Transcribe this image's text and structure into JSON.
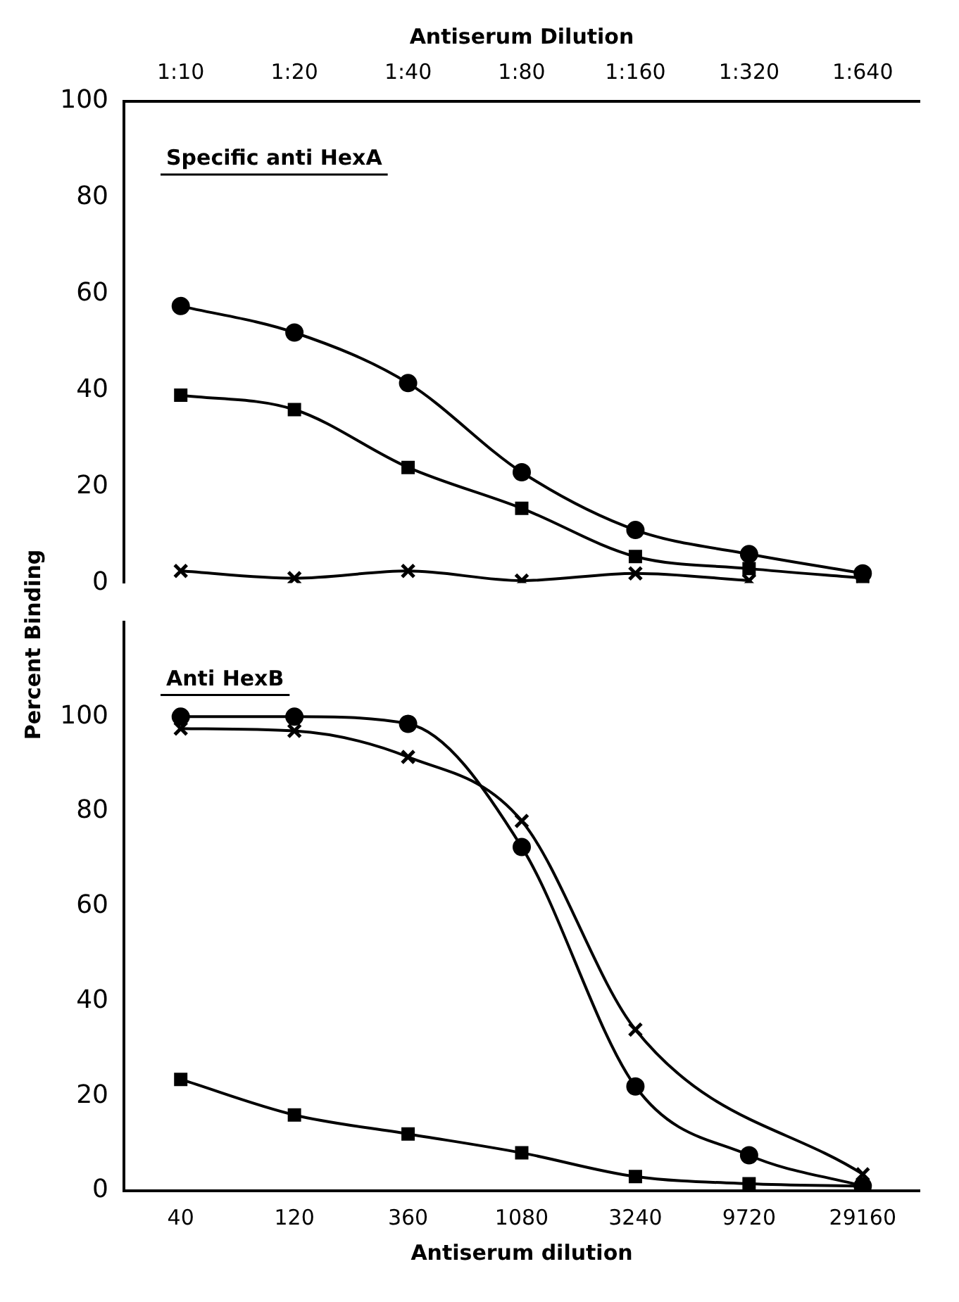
{
  "chart_data": [
    {
      "type": "line",
      "xlabel": "Antiserum Dilution",
      "ylabel": "Percent Binding",
      "categories": [
        "1:10",
        "1:20",
        "1:40",
        "1:80",
        "1:160",
        "1:320",
        "1:640"
      ],
      "ylim": [
        0,
        100
      ],
      "yticks": [
        0,
        20,
        40,
        60,
        80,
        100
      ],
      "grid": false,
      "legend": false,
      "annotations": [
        "Specific anti HexA"
      ],
      "series": [
        {
          "color": "#000000",
          "marker": "circle",
          "values": [
            57.5,
            52,
            41.5,
            23,
            11,
            6,
            2
          ]
        },
        {
          "color": "#000000",
          "marker": "square",
          "values": [
            39,
            36,
            24,
            15.5,
            5.5,
            3,
            1
          ]
        },
        {
          "color": "#000000",
          "marker": "cross",
          "values": [
            2.5,
            1,
            2.5,
            0.5,
            2,
            0.5,
            null
          ]
        }
      ]
    },
    {
      "type": "line",
      "xlabel": "Antiserum dilution",
      "categories": [
        "40",
        "120",
        "360",
        "1080",
        "3240",
        "9720",
        "29160"
      ],
      "ylim": [
        0,
        120
      ],
      "yticks": [
        0,
        20,
        40,
        60,
        80,
        100
      ],
      "grid": false,
      "legend": false,
      "annotations": [
        "Anti HexB"
      ],
      "series": [
        {
          "color": "#000000",
          "marker": "circle",
          "values": [
            100,
            100,
            98.5,
            72.5,
            22,
            7.5,
            1
          ]
        },
        {
          "color": "#000000",
          "marker": "square",
          "values": [
            23.5,
            16,
            12,
            8,
            3,
            1.5,
            1
          ]
        },
        {
          "color": "#000000",
          "marker": "cross",
          "values": [
            97.5,
            97,
            91.5,
            78,
            34,
            null,
            3.5
          ]
        }
      ]
    }
  ]
}
